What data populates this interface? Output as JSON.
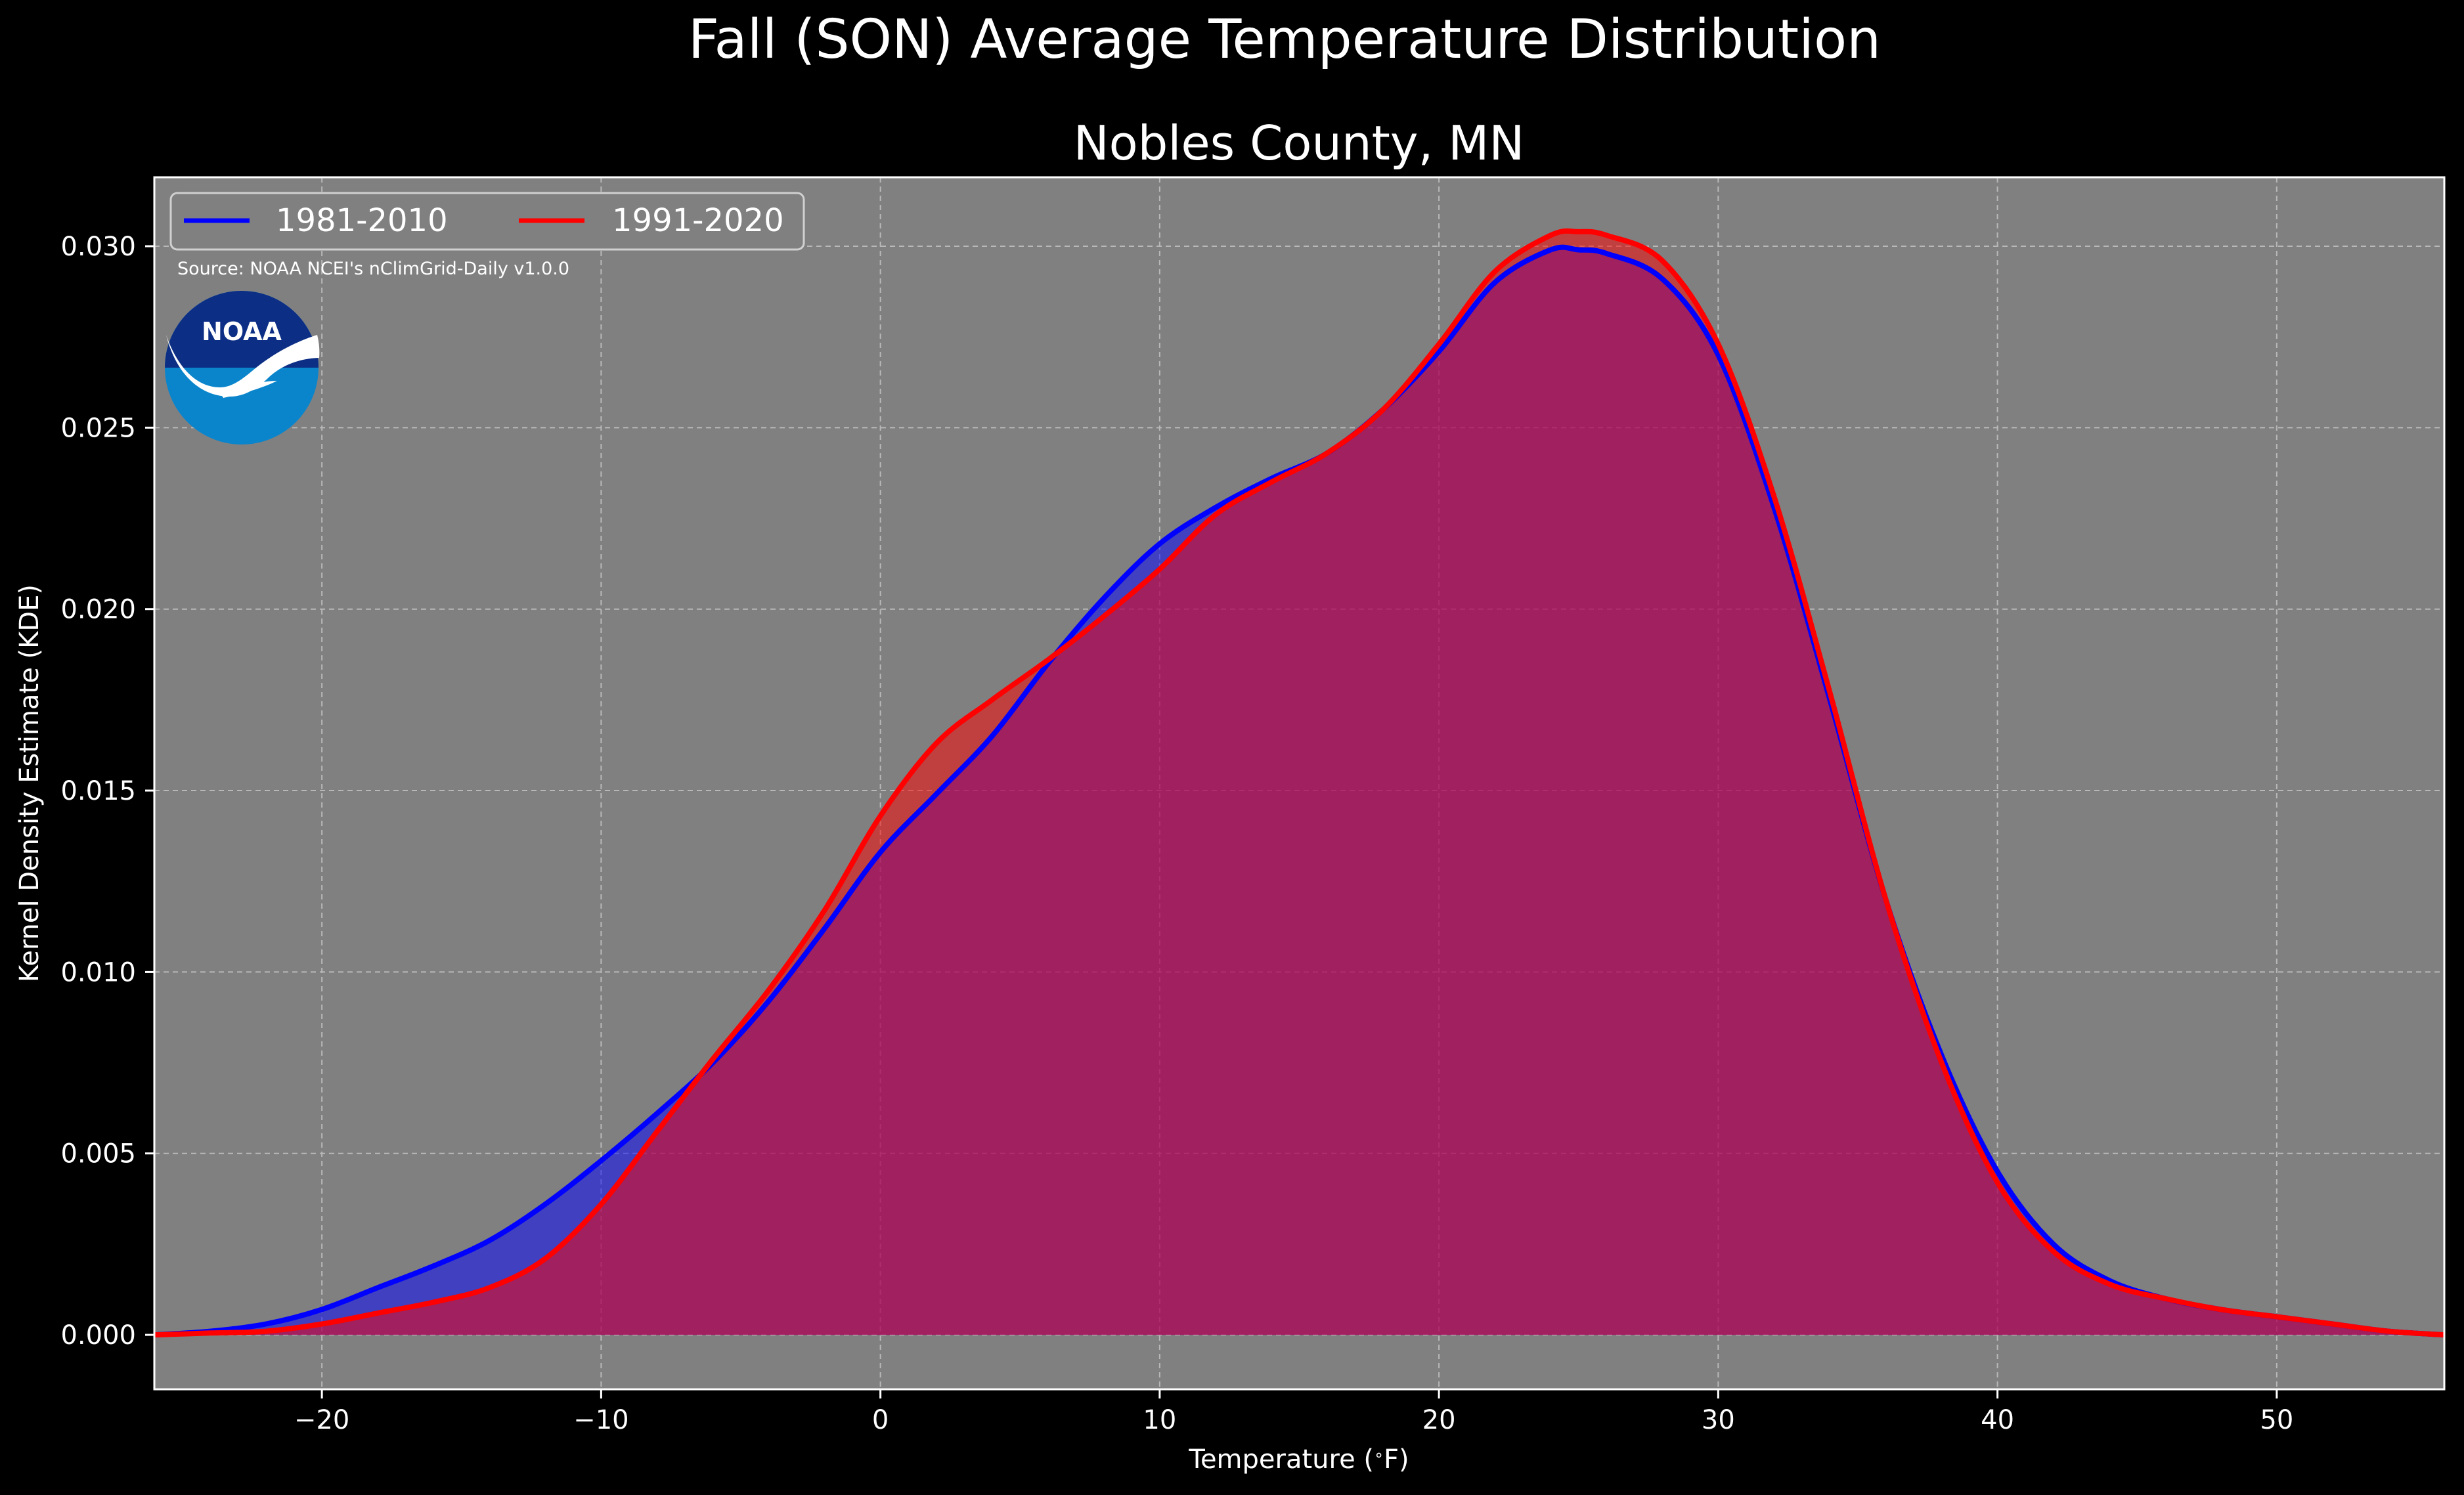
{
  "figure": {
    "suptitle": "Fall (SON) Average Temperature Distribution",
    "background": "#000000"
  },
  "chart_data": {
    "type": "area",
    "title": "Nobles County, MN",
    "xlabel": "Temperature ($^\\circ$F)",
    "ylabel": "Kernel Density Estimate (KDE)",
    "xlim": [
      -26,
      56
    ],
    "ylim": [
      -0.0015,
      0.0319
    ],
    "xticks": [
      -20,
      -10,
      0,
      10,
      20,
      30,
      40,
      50
    ],
    "xtick_labels": [
      "−20",
      "−10",
      "0",
      "10",
      "20",
      "30",
      "40",
      "50"
    ],
    "yticks": [
      0.0,
      0.005,
      0.01,
      0.015,
      0.02,
      0.025,
      0.03
    ],
    "ytick_labels": [
      "0.000",
      "0.005",
      "0.010",
      "0.015",
      "0.020",
      "0.025",
      "0.030"
    ],
    "grid": true,
    "legend_location": "top-left",
    "plot_background": "#808080",
    "annotation": "Source: NOAA NCEI's nClimGrid-Daily v1.0.0",
    "logo": "NOAA",
    "x": [
      -26,
      -24,
      -22,
      -20,
      -18,
      -16,
      -14,
      -12,
      -10,
      -8,
      -6,
      -4,
      -2,
      0,
      2,
      4,
      6,
      8,
      10,
      12,
      14,
      16,
      18,
      20,
      22,
      24,
      25,
      26,
      28,
      30,
      32,
      34,
      36,
      38,
      40,
      42,
      44,
      46,
      48,
      50,
      52,
      54,
      56
    ],
    "series": [
      {
        "name": "1981-2010",
        "color": "#0000ff",
        "values": [
          0.0,
          0.0001,
          0.0003,
          0.0007,
          0.0013,
          0.0019,
          0.0026,
          0.0036,
          0.0048,
          0.0061,
          0.0075,
          0.0092,
          0.0112,
          0.0133,
          0.0149,
          0.0165,
          0.0185,
          0.0203,
          0.0218,
          0.0228,
          0.0236,
          0.0243,
          0.0255,
          0.0271,
          0.029,
          0.0299,
          0.0299,
          0.0298,
          0.0291,
          0.027,
          0.0228,
          0.0175,
          0.012,
          0.0077,
          0.0045,
          0.0025,
          0.0015,
          0.001,
          0.0007,
          0.0005,
          0.0003,
          0.0001,
          0.0
        ]
      },
      {
        "name": "1991-2020",
        "color": "#ff0000",
        "values": [
          0.0,
          5e-05,
          0.0001,
          0.0003,
          0.0006,
          0.0009,
          0.0013,
          0.0021,
          0.0036,
          0.0056,
          0.0076,
          0.0095,
          0.0117,
          0.0143,
          0.0163,
          0.0175,
          0.0186,
          0.0198,
          0.0211,
          0.0226,
          0.0235,
          0.0243,
          0.0255,
          0.0273,
          0.0293,
          0.0303,
          0.0304,
          0.0303,
          0.0296,
          0.0273,
          0.0231,
          0.0177,
          0.012,
          0.0075,
          0.0042,
          0.0023,
          0.0014,
          0.001,
          0.0007,
          0.0005,
          0.0003,
          0.0001,
          0.0
        ]
      }
    ]
  }
}
